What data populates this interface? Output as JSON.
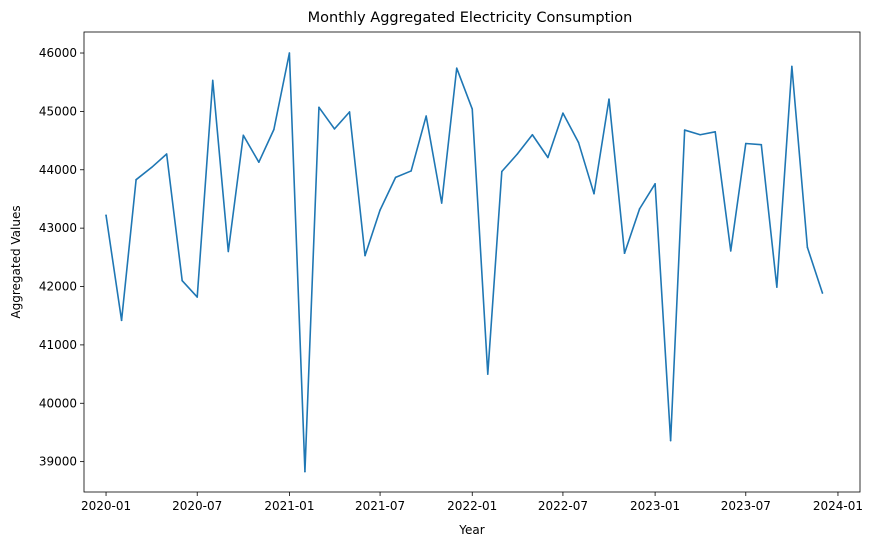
{
  "chart_data": {
    "type": "line",
    "title": "Monthly Aggregated Electricity Consumption",
    "xlabel": "Year",
    "ylabel": "Aggregated Values",
    "x_type": "date",
    "xlim": [
      "2019-11-18",
      "2024-02-14"
    ],
    "ylim": [
      38480,
      46360
    ],
    "x_ticks": [
      "2020-01",
      "2020-07",
      "2021-01",
      "2021-07",
      "2022-01",
      "2022-07",
      "2023-01",
      "2023-07",
      "2024-01"
    ],
    "y_ticks": [
      39000,
      40000,
      41000,
      42000,
      43000,
      44000,
      45000,
      46000
    ],
    "grid": false,
    "legend": "none",
    "series": [
      {
        "color": "#1f77b4",
        "x": [
          "2020-01-01",
          "2020-02-01",
          "2020-03-01",
          "2020-04-01",
          "2020-05-01",
          "2020-06-01",
          "2020-07-01",
          "2020-08-01",
          "2020-09-01",
          "2020-10-01",
          "2020-11-01",
          "2020-12-01",
          "2021-01-01",
          "2021-02-01",
          "2021-03-01",
          "2021-04-01",
          "2021-05-01",
          "2021-06-01",
          "2021-07-01",
          "2021-08-01",
          "2021-09-01",
          "2021-10-01",
          "2021-11-01",
          "2021-12-01",
          "2022-01-01",
          "2022-02-01",
          "2022-03-01",
          "2022-04-01",
          "2022-05-01",
          "2022-06-01",
          "2022-07-01",
          "2022-08-01",
          "2022-09-01",
          "2022-10-01",
          "2022-11-01",
          "2022-12-01",
          "2023-01-01",
          "2023-02-01",
          "2023-03-01",
          "2023-04-01",
          "2023-05-01",
          "2023-06-01",
          "2023-07-01",
          "2023-08-01",
          "2023-09-01",
          "2023-10-01",
          "2023-11-01",
          "2023-12-01"
        ],
        "values": [
          43220,
          41420,
          43830,
          44040,
          44270,
          42100,
          41820,
          45530,
          42600,
          44590,
          44130,
          44690,
          46000,
          38830,
          45070,
          44700,
          44990,
          42530,
          43310,
          43870,
          43980,
          44920,
          43430,
          45740,
          45040,
          40500,
          43970,
          44270,
          44600,
          44210,
          44970,
          44470,
          43590,
          45210,
          42570,
          43330,
          43760,
          39360,
          44680,
          44600,
          44650,
          42610,
          44450,
          44430,
          41990,
          45770,
          42670,
          41890
        ]
      }
    ]
  }
}
